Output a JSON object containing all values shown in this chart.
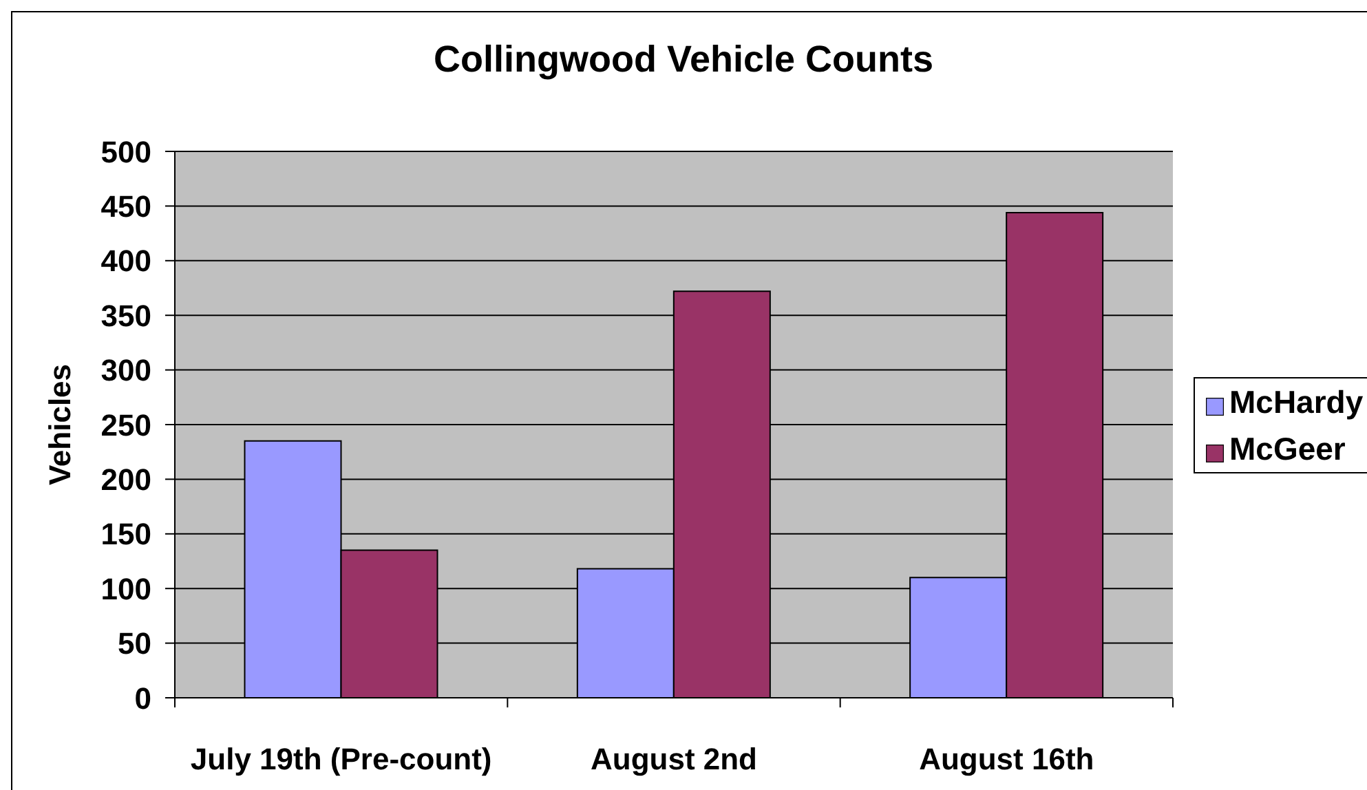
{
  "chart_data": {
    "type": "bar",
    "title": "Collingwood Vehicle Counts",
    "ylabel": "Vehicles",
    "categories": [
      "July 19th (Pre-count)",
      "August 2nd",
      "August 16th"
    ],
    "series": [
      {
        "name": "McHardy",
        "color": "#9999ff",
        "values": [
          235,
          118,
          110
        ]
      },
      {
        "name": "McGeer",
        "color": "#993366",
        "values": [
          135,
          372,
          444
        ]
      }
    ],
    "ylim": [
      0,
      500
    ],
    "yticks": [
      0,
      50,
      100,
      150,
      200,
      250,
      300,
      350,
      400,
      450,
      500
    ],
    "grid": "y",
    "legend": "right"
  }
}
